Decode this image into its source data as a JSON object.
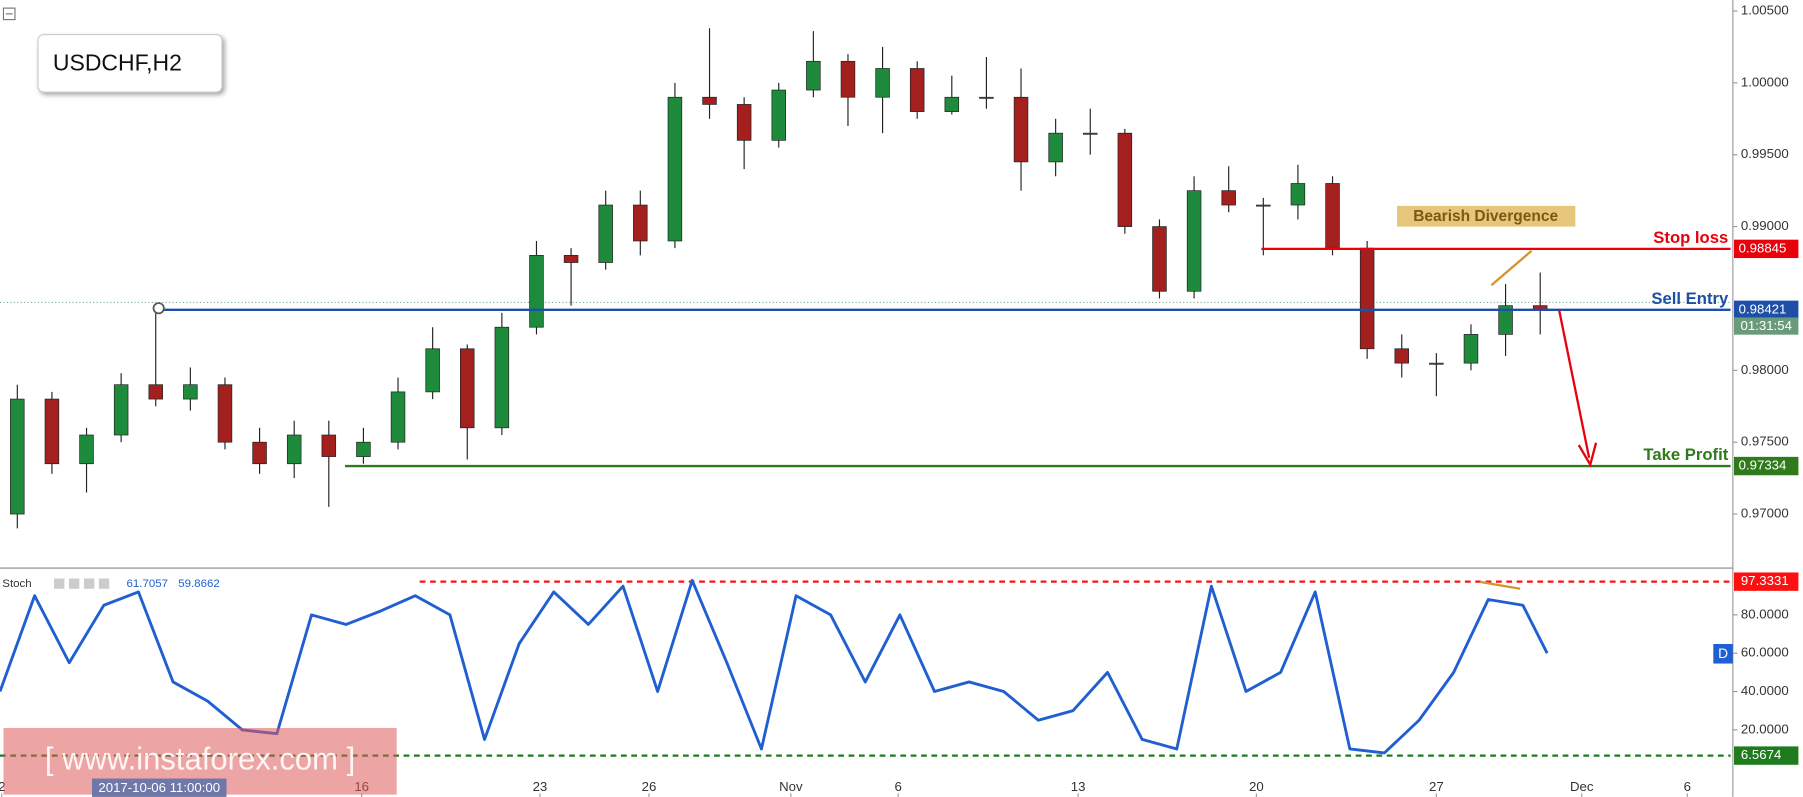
{
  "chart_data": [
    {
      "type": "candlestick",
      "title": "USDCHF,H2",
      "x": [
        1,
        3,
        5,
        7,
        9,
        11,
        13,
        15,
        17,
        19,
        21,
        23,
        25,
        27,
        29,
        31,
        33,
        35,
        37,
        39,
        41,
        43,
        45,
        47,
        49,
        51,
        53,
        55,
        57,
        59,
        61,
        63,
        65,
        67,
        69,
        71,
        73,
        75,
        77,
        79,
        81,
        83,
        85,
        87,
        89
      ],
      "open": [
        0.97,
        0.978,
        0.9735,
        0.9755,
        0.979,
        0.978,
        0.979,
        0.975,
        0.9735,
        0.9755,
        0.974,
        0.975,
        0.9785,
        0.9815,
        0.976,
        0.983,
        0.988,
        0.9875,
        0.9915,
        0.989,
        0.999,
        0.9985,
        0.996,
        0.9995,
        1.0015,
        0.999,
        1.001,
        0.998,
        0.999,
        0.999,
        0.9945,
        0.9965,
        0.9965,
        0.99,
        0.9855,
        0.9925,
        0.9915,
        0.9915,
        0.993,
        0.9885,
        0.9815,
        0.9805,
        0.9805,
        0.9825,
        0.9845
      ],
      "high": [
        0.979,
        0.9785,
        0.976,
        0.9798,
        0.9842,
        0.9802,
        0.9795,
        0.976,
        0.9765,
        0.9765,
        0.976,
        0.9795,
        0.983,
        0.9818,
        0.984,
        0.989,
        0.9885,
        0.9925,
        0.9925,
        1.0,
        1.0038,
        0.999,
        1.0,
        1.0036,
        1.002,
        1.0025,
        1.0015,
        1.0005,
        1.0018,
        1.001,
        0.9975,
        0.9982,
        0.9968,
        0.9905,
        0.9935,
        0.9942,
        0.992,
        0.9943,
        0.9935,
        0.989,
        0.9825,
        0.9812,
        0.9832,
        0.986,
        0.9868
      ],
      "low": [
        0.969,
        0.9728,
        0.9715,
        0.975,
        0.9775,
        0.9772,
        0.9745,
        0.9728,
        0.9725,
        0.9705,
        0.9735,
        0.9745,
        0.978,
        0.9738,
        0.9755,
        0.9825,
        0.9845,
        0.987,
        0.988,
        0.9885,
        0.9975,
        0.994,
        0.9955,
        0.999,
        0.997,
        0.9965,
        0.9975,
        0.9978,
        0.9982,
        0.9925,
        0.9935,
        0.995,
        0.9895,
        0.985,
        0.985,
        0.991,
        0.988,
        0.9905,
        0.988,
        0.9808,
        0.9795,
        0.9782,
        0.98,
        0.981,
        0.9825
      ],
      "close": [
        0.978,
        0.9735,
        0.9755,
        0.979,
        0.978,
        0.979,
        0.975,
        0.9735,
        0.9755,
        0.974,
        0.975,
        0.9785,
        0.9815,
        0.976,
        0.983,
        0.988,
        0.9875,
        0.9915,
        0.989,
        0.999,
        0.9985,
        0.996,
        0.9995,
        1.0015,
        0.999,
        1.001,
        0.998,
        0.999,
        0.999,
        0.9945,
        0.9965,
        0.9965,
        0.99,
        0.9855,
        0.9925,
        0.9915,
        0.9915,
        0.993,
        0.9885,
        0.9815,
        0.9805,
        0.9805,
        0.9825,
        0.9845,
        0.9842
      ],
      "up_color": "#1e8a3c",
      "down_color": "#a3201e",
      "xlim": [
        0,
        100
      ],
      "xticks": [
        {
          "value": 0.1,
          "label": "2"
        },
        {
          "value": 20.9,
          "label": "16"
        },
        {
          "value": 31.2,
          "label": "23"
        },
        {
          "value": 37.5,
          "label": "26"
        },
        {
          "value": 45.7,
          "label": "Nov"
        },
        {
          "value": 51.9,
          "label": "6"
        },
        {
          "value": 62.3,
          "label": "13"
        },
        {
          "value": 72.6,
          "label": "20"
        },
        {
          "value": 83.0,
          "label": "27"
        },
        {
          "value": 91.4,
          "label": "Dec"
        },
        {
          "value": 97.5,
          "label": "6"
        }
      ],
      "ylim": [
        0.96632,
        1.00576
      ],
      "yticks": [
        {
          "value": 1.005,
          "label": "1.00500"
        },
        {
          "value": 1.0,
          "label": "1.00000"
        },
        {
          "value": 0.995,
          "label": "0.99500"
        },
        {
          "value": 0.99,
          "label": "0.99000"
        },
        {
          "value": 0.98,
          "label": "0.98000"
        },
        {
          "value": 0.975,
          "label": "0.97500"
        },
        {
          "value": 0.97,
          "label": "0.97000"
        }
      ],
      "levels": [
        {
          "name": "Stop loss",
          "value": 0.98845,
          "color": "#e8000b"
        },
        {
          "name": "Sell Entry",
          "value": 0.98421,
          "color": "#1d4fa8"
        },
        {
          "name": "Take Profit",
          "value": 0.97334,
          "color": "#2f7a1a"
        }
      ],
      "annotation": "Bearish Divergence",
      "countdown": "01:31:54",
      "cursor_label": "2017-10-06 11:00:00",
      "watermark": "[ www.instaforex.com ]"
    },
    {
      "type": "line",
      "title": "Stoch",
      "legend_values": [
        61.7057,
        59.8662
      ],
      "marker_label": "D",
      "x": [
        0,
        2,
        4,
        6,
        8,
        10,
        12,
        14,
        16,
        18,
        20,
        22,
        24,
        26,
        28,
        30,
        32,
        34,
        36,
        38,
        40,
        42,
        44,
        46,
        48,
        50,
        52,
        54,
        56,
        58,
        60,
        62,
        64,
        66,
        68,
        70,
        72,
        74,
        76,
        78,
        80,
        82,
        84,
        86,
        88,
        89.4
      ],
      "series": [
        {
          "color": "#1f5fd1",
          "values": [
            40,
            90,
            55,
            85,
            92,
            45,
            35,
            20,
            18,
            80,
            75,
            82,
            90,
            80,
            15,
            65,
            92,
            75,
            95,
            40,
            98,
            55,
            10,
            90,
            80,
            45,
            80,
            40,
            45,
            40,
            25,
            30,
            50,
            15,
            10,
            95,
            40,
            50,
            92,
            10,
            8,
            25,
            50,
            88,
            85,
            60
          ]
        }
      ],
      "xlim": [
        0,
        100
      ],
      "ylim": [
        -15,
        102.6
      ],
      "yticks": [
        {
          "value": 20,
          "label": "20.0000"
        },
        {
          "value": 40,
          "label": "40.0000"
        },
        {
          "value": 60,
          "label": "60.0000"
        },
        {
          "value": 80,
          "label": "80.0000"
        }
      ],
      "levels": [
        {
          "value": 97.3331,
          "color": "#ff1010"
        },
        {
          "value": 6.5674,
          "color": "#1e7b1e"
        }
      ]
    }
  ]
}
